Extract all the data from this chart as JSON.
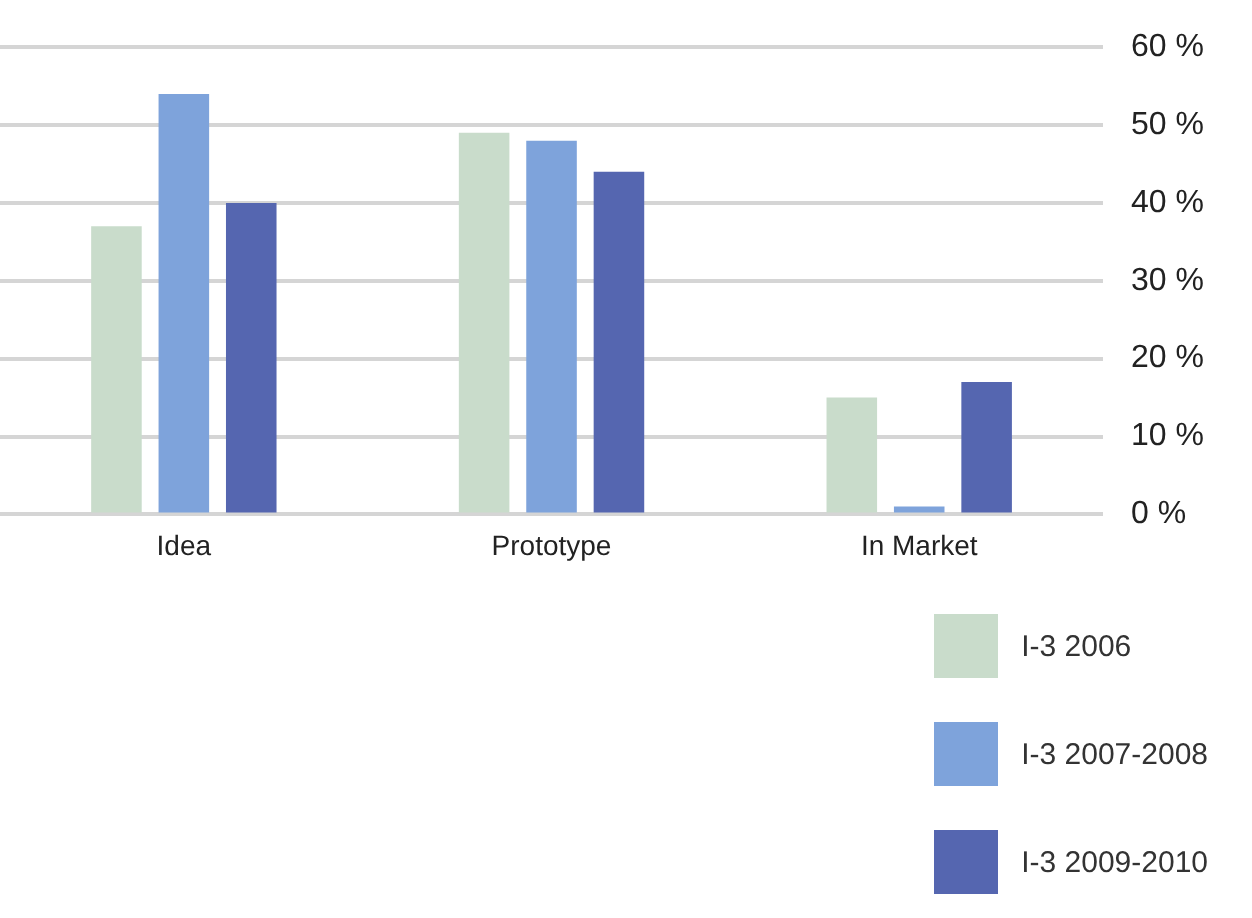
{
  "chart_data": {
    "type": "bar",
    "categories": [
      "Idea",
      "Prototype",
      "In Market"
    ],
    "series": [
      {
        "name": "I-3 2006",
        "color": "#c9dccb",
        "values": [
          37,
          49,
          15
        ]
      },
      {
        "name": "I-3 2007-2008",
        "color": "#7ea3db",
        "values": [
          54,
          48,
          1
        ]
      },
      {
        "name": "I-3 2009-2010",
        "color": "#5566b0",
        "values": [
          40,
          44,
          17
        ]
      }
    ],
    "ylim": [
      0,
      60
    ],
    "yticks": [
      {
        "value": 0,
        "label": "0 %"
      },
      {
        "value": 10,
        "label": "10 %"
      },
      {
        "value": 20,
        "label": "20 %"
      },
      {
        "value": 30,
        "label": "30 %"
      },
      {
        "value": 40,
        "label": "40 %"
      },
      {
        "value": 50,
        "label": "50 %"
      },
      {
        "value": 60,
        "label": "60 %"
      }
    ],
    "grid": "y",
    "legend": "bottom right"
  }
}
